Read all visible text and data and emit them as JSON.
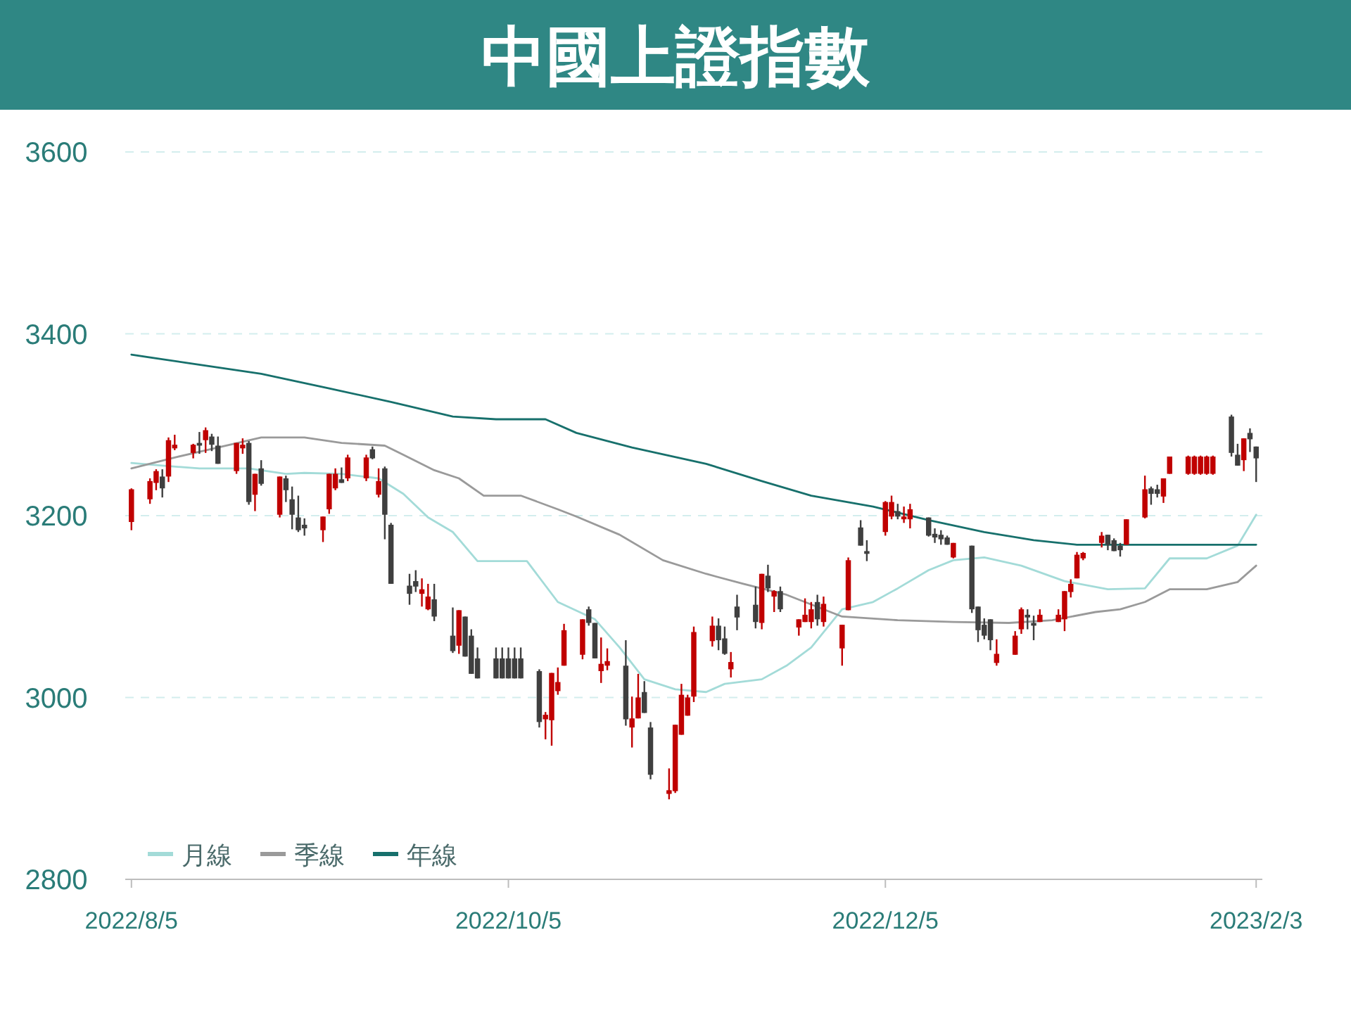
{
  "chart_data": {
    "type": "candlestick",
    "title": "中國上證指數",
    "x": [
      "2022-08-05",
      "2022-08-08",
      "2022-08-09",
      "2022-08-10",
      "2022-08-11",
      "2022-08-12",
      "2022-08-15",
      "2022-08-16",
      "2022-08-17",
      "2022-08-18",
      "2022-08-19",
      "2022-08-22",
      "2022-08-23",
      "2022-08-24",
      "2022-08-25",
      "2022-08-26",
      "2022-08-29",
      "2022-08-30",
      "2022-08-31",
      "2022-09-01",
      "2022-09-02",
      "2022-09-05",
      "2022-09-06",
      "2022-09-07",
      "2022-09-08",
      "2022-09-09",
      "2022-09-12",
      "2022-09-13",
      "2022-09-14",
      "2022-09-15",
      "2022-09-16",
      "2022-09-19",
      "2022-09-20",
      "2022-09-21",
      "2022-09-22",
      "2022-09-23",
      "2022-09-26",
      "2022-09-27",
      "2022-09-28",
      "2022-09-29",
      "2022-09-30",
      "2022-10-03",
      "2022-10-04",
      "2022-10-05",
      "2022-10-06",
      "2022-10-07",
      "2022-10-10",
      "2022-10-11",
      "2022-10-12",
      "2022-10-13",
      "2022-10-14",
      "2022-10-17",
      "2022-10-18",
      "2022-10-19",
      "2022-10-20",
      "2022-10-21",
      "2022-10-24",
      "2022-10-25",
      "2022-10-26",
      "2022-10-27",
      "2022-10-28",
      "2022-10-31",
      "2022-11-01",
      "2022-11-02",
      "2022-11-03",
      "2022-11-04",
      "2022-11-07",
      "2022-11-08",
      "2022-11-09",
      "2022-11-10",
      "2022-11-11",
      "2022-11-14",
      "2022-11-15",
      "2022-11-16",
      "2022-11-17",
      "2022-11-18",
      "2022-11-21",
      "2022-11-22",
      "2022-11-23",
      "2022-11-24",
      "2022-11-25",
      "2022-11-28",
      "2022-11-29",
      "2022-12-01",
      "2022-12-02",
      "2022-12-05",
      "2022-12-06",
      "2022-12-07",
      "2022-12-08",
      "2022-12-09",
      "2022-12-12",
      "2022-12-13",
      "2022-12-14",
      "2022-12-15",
      "2022-12-16",
      "2022-12-19",
      "2022-12-20",
      "2022-12-21",
      "2022-12-22",
      "2022-12-23",
      "2022-12-26",
      "2022-12-27",
      "2022-12-28",
      "2022-12-29",
      "2022-12-30",
      "2023-01-02",
      "2023-01-03",
      "2023-01-04",
      "2023-01-05",
      "2023-01-06",
      "2023-01-09",
      "2023-01-10",
      "2023-01-11",
      "2023-01-12",
      "2023-01-13",
      "2023-01-16",
      "2023-01-17",
      "2023-01-18",
      "2023-01-19",
      "2023-01-20",
      "2023-01-23",
      "2023-01-24",
      "2023-01-25",
      "2023-01-26",
      "2023-01-27",
      "2023-01-30",
      "2023-01-31",
      "2023-02-01",
      "2023-02-02",
      "2023-02-03"
    ],
    "ohlc": [
      [
        3193,
        3230,
        3184,
        3229
      ],
      [
        3218,
        3241,
        3213,
        3238
      ],
      [
        3236,
        3251,
        3228,
        3249
      ],
      [
        3243,
        3251,
        3220,
        3230
      ],
      [
        3243,
        3286,
        3237,
        3283
      ],
      [
        3274,
        3289,
        3272,
        3278
      ],
      [
        3269,
        3279,
        3263,
        3278
      ],
      [
        3280,
        3292,
        3268,
        3277
      ],
      [
        3283,
        3297,
        3269,
        3294
      ],
      [
        3287,
        3290,
        3271,
        3278
      ],
      [
        3277,
        3287,
        3257,
        3257
      ],
      [
        3249,
        3280,
        3246,
        3280
      ],
      [
        3274,
        3285,
        3268,
        3278
      ],
      [
        3280,
        3282,
        3212,
        3215
      ],
      [
        3223,
        3246,
        3205,
        3246
      ],
      [
        3252,
        3261,
        3233,
        3235
      ],
      [
        3201,
        3243,
        3198,
        3243
      ],
      [
        3241,
        3244,
        3215,
        3228
      ],
      [
        3218,
        3232,
        3185,
        3201
      ],
      [
        3198,
        3222,
        3182,
        3184
      ],
      [
        3190,
        3197,
        3178,
        3186
      ],
      [
        3184,
        3199,
        3171,
        3199
      ],
      [
        3207,
        3246,
        3202,
        3246
      ],
      [
        3230,
        3252,
        3228,
        3246
      ],
      [
        3240,
        3253,
        3236,
        3236
      ],
      [
        3241,
        3267,
        3238,
        3264
      ],
      [
        3241,
        3267,
        3238,
        3264
      ],
      [
        3273,
        3276,
        3262,
        3263
      ],
      [
        3223,
        3252,
        3220,
        3238
      ],
      [
        3252,
        3254,
        3174,
        3201
      ],
      [
        3190,
        3192,
        3125,
        3125
      ],
      [
        3123,
        3136,
        3102,
        3114
      ],
      [
        3128,
        3140,
        3116,
        3122
      ],
      [
        3114,
        3131,
        3100,
        3119
      ],
      [
        3097,
        3125,
        3096,
        3111
      ],
      [
        3108,
        3125,
        3084,
        3089
      ],
      [
        3068,
        3099,
        3049,
        3051
      ],
      [
        3057,
        3096,
        3048,
        3096
      ],
      [
        3089,
        3089,
        3045,
        3045
      ],
      [
        3068,
        3075,
        3026,
        3026
      ],
      [
        3043,
        3055,
        3021,
        3021
      ],
      [
        3043,
        3055,
        3021,
        3021
      ],
      [
        3043,
        3055,
        3021,
        3021
      ],
      [
        3043,
        3055,
        3021,
        3021
      ],
      [
        3043,
        3055,
        3021,
        3021
      ],
      [
        3043,
        3055,
        3021,
        3021
      ],
      [
        3029,
        3031,
        2967,
        2973
      ],
      [
        2976,
        2984,
        2954,
        2981
      ],
      [
        2975,
        3027,
        2947,
        3027
      ],
      [
        3007,
        3033,
        3003,
        3017
      ],
      [
        3035,
        3081,
        3035,
        3074
      ],
      [
        3047,
        3086,
        3042,
        3086
      ],
      [
        3097,
        3100,
        3079,
        3082
      ],
      [
        3082,
        3082,
        3043,
        3043
      ],
      [
        3029,
        3066,
        3016,
        3037
      ],
      [
        3035,
        3054,
        3030,
        3040
      ],
      [
        3035,
        3063,
        2969,
        2976
      ],
      [
        2967,
        3001,
        2945,
        2977
      ],
      [
        2977,
        3026,
        2977,
        3000
      ],
      [
        3006,
        3018,
        2983,
        2983
      ],
      [
        2967,
        2973,
        2910,
        2915
      ],
      [
        2894,
        2922,
        2888,
        2898
      ],
      [
        2897,
        2970,
        2895,
        2970
      ],
      [
        2959,
        3015,
        2959,
        3003
      ],
      [
        2980,
        3003,
        2980,
        3000
      ],
      [
        3001,
        3078,
        2995,
        3072
      ],
      [
        3062,
        3089,
        3056,
        3079
      ],
      [
        3079,
        3087,
        3052,
        3063
      ],
      [
        3065,
        3078,
        3047,
        3048
      ],
      [
        3031,
        3050,
        3022,
        3039
      ],
      [
        3100,
        3113,
        3074,
        3088
      ],
      [
        3102,
        3122,
        3076,
        3083
      ],
      [
        3082,
        3136,
        3075,
        3136
      ],
      [
        3134,
        3146,
        3116,
        3120
      ],
      [
        3111,
        3118,
        3094,
        3117
      ],
      [
        3117,
        3122,
        3094,
        3097
      ],
      [
        3077,
        3086,
        3068,
        3086
      ],
      [
        3083,
        3109,
        3083,
        3091
      ],
      [
        3083,
        3105,
        3076,
        3097
      ],
      [
        3105,
        3113,
        3079,
        3086
      ],
      [
        3083,
        3111,
        3078,
        3103
      ],
      [
        3054,
        3080,
        3035,
        3080
      ],
      [
        3096,
        3154,
        3096,
        3151
      ],
      [
        3187,
        3195,
        3167,
        3167
      ],
      [
        3161,
        3173,
        3150,
        3158
      ],
      [
        3182,
        3216,
        3178,
        3215
      ],
      [
        3199,
        3222,
        3196,
        3215
      ],
      [
        3205,
        3213,
        3196,
        3199
      ],
      [
        3196,
        3210,
        3192,
        3199
      ],
      [
        3196,
        3213,
        3186,
        3207
      ],
      [
        3198,
        3198,
        3177,
        3178
      ],
      [
        3180,
        3186,
        3170,
        3176
      ],
      [
        3179,
        3184,
        3168,
        3174
      ],
      [
        3176,
        3178,
        3168,
        3168
      ],
      [
        3154,
        3170,
        3153,
        3170
      ],
      [
        3167,
        3167,
        3093,
        3097
      ],
      [
        3100,
        3100,
        3061,
        3074
      ],
      [
        3080,
        3087,
        3064,
        3068
      ],
      [
        3086,
        3086,
        3052,
        3063
      ],
      [
        3038,
        3064,
        3035,
        3048
      ],
      [
        3047,
        3073,
        3047,
        3068
      ],
      [
        3075,
        3099,
        3070,
        3097
      ],
      [
        3091,
        3097,
        3075,
        3088
      ],
      [
        3082,
        3090,
        3063,
        3079
      ],
      [
        3083,
        3097,
        3083,
        3091
      ],
      [
        3083,
        3097,
        3083,
        3091
      ],
      [
        3086,
        3117,
        3073,
        3117
      ],
      [
        3116,
        3130,
        3110,
        3125
      ],
      [
        3131,
        3160,
        3131,
        3157
      ],
      [
        3153,
        3160,
        3151,
        3159
      ],
      [
        3170,
        3182,
        3165,
        3178
      ],
      [
        3179,
        3179,
        3162,
        3168
      ],
      [
        3173,
        3175,
        3161,
        3161
      ],
      [
        3167,
        3170,
        3155,
        3162
      ],
      [
        3168,
        3196,
        3168,
        3196
      ],
      [
        3198,
        3244,
        3197,
        3229
      ],
      [
        3230,
        3232,
        3212,
        3224
      ],
      [
        3229,
        3234,
        3220,
        3224
      ],
      [
        3221,
        3241,
        3214,
        3241
      ],
      [
        3246,
        3265,
        3246,
        3265
      ],
      [
        3246,
        3266,
        3245,
        3265
      ],
      [
        3246,
        3266,
        3245,
        3265
      ],
      [
        3246,
        3266,
        3245,
        3265
      ],
      [
        3246,
        3266,
        3245,
        3265
      ],
      [
        3246,
        3266,
        3245,
        3265
      ],
      [
        3309,
        3311,
        3265,
        3269
      ],
      [
        3267,
        3279,
        3255,
        3255
      ],
      [
        3261,
        3285,
        3249,
        3285
      ],
      [
        3291,
        3296,
        3270,
        3284
      ],
      [
        3276,
        3276,
        3237,
        3263
      ]
    ],
    "colors": [
      "#c00000",
      "#c00000",
      "#c00000",
      "#3f3f3f",
      "#c00000",
      "#c00000",
      "#c00000",
      "#3f3f3f",
      "#c00000",
      "#3f3f3f",
      "#3f3f3f",
      "#c00000",
      "#c00000",
      "#3f3f3f",
      "#c00000",
      "#3f3f3f",
      "#c00000",
      "#3f3f3f",
      "#3f3f3f",
      "#3f3f3f",
      "#3f3f3f",
      "#c00000",
      "#c00000",
      "#c00000",
      "#3f3f3f",
      "#c00000",
      "#c00000",
      "#3f3f3f",
      "#c00000",
      "#3f3f3f",
      "#3f3f3f",
      "#3f3f3f",
      "#3f3f3f",
      "#c00000",
      "#c00000",
      "#3f3f3f",
      "#3f3f3f",
      "#c00000",
      "#3f3f3f",
      "#3f3f3f",
      "#3f3f3f",
      "#3f3f3f",
      "#3f3f3f",
      "#3f3f3f",
      "#3f3f3f",
      "#3f3f3f",
      "#3f3f3f",
      "#c00000",
      "#c00000",
      "#c00000",
      "#c00000",
      "#c00000",
      "#3f3f3f",
      "#3f3f3f",
      "#c00000",
      "#c00000",
      "#3f3f3f",
      "#c00000",
      "#c00000",
      "#3f3f3f",
      "#3f3f3f",
      "#c00000",
      "#c00000",
      "#c00000",
      "#c00000",
      "#c00000",
      "#c00000",
      "#3f3f3f",
      "#3f3f3f",
      "#c00000",
      "#3f3f3f",
      "#3f3f3f",
      "#c00000",
      "#3f3f3f",
      "#c00000",
      "#3f3f3f",
      "#c00000",
      "#c00000",
      "#c00000",
      "#3f3f3f",
      "#c00000",
      "#c00000",
      "#c00000",
      "#3f3f3f",
      "#3f3f3f",
      "#c00000",
      "#c00000",
      "#3f3f3f",
      "#c00000",
      "#c00000",
      "#3f3f3f",
      "#3f3f3f",
      "#3f3f3f",
      "#3f3f3f",
      "#c00000",
      "#3f3f3f",
      "#3f3f3f",
      "#3f3f3f",
      "#3f3f3f",
      "#c00000",
      "#c00000",
      "#c00000",
      "#3f3f3f",
      "#3f3f3f",
      "#c00000",
      "#c00000",
      "#c00000",
      "#c00000",
      "#c00000",
      "#c00000",
      "#c00000",
      "#3f3f3f",
      "#3f3f3f",
      "#3f3f3f",
      "#c00000",
      "#c00000",
      "#3f3f3f",
      "#3f3f3f",
      "#c00000",
      "#c00000",
      "#c00000",
      "#c00000",
      "#c00000",
      "#c00000",
      "#c00000",
      "#3f3f3f",
      "#3f3f3f",
      "#c00000",
      "#3f3f3f",
      "#3f3f3f"
    ],
    "series": [
      {
        "name": "月線",
        "type": "line",
        "color": "#a3dbd8",
        "x": [
          "2022-08-05",
          "2022-08-10",
          "2022-08-16",
          "2022-08-24",
          "2022-08-30",
          "2022-09-02",
          "2022-09-08",
          "2022-09-14",
          "2022-09-18",
          "2022-09-22",
          "2022-09-26",
          "2022-09-30",
          "2022-10-08",
          "2022-10-13",
          "2022-10-19",
          "2022-10-23",
          "2022-10-27",
          "2022-11-01",
          "2022-11-06",
          "2022-11-09",
          "2022-11-15",
          "2022-11-19",
          "2022-11-23",
          "2022-11-28",
          "2022-12-03",
          "2022-12-07",
          "2022-12-12",
          "2022-12-16",
          "2022-12-21",
          "2022-12-27",
          "2023-01-03",
          "2023-01-10",
          "2023-01-16",
          "2023-01-20",
          "2023-01-26",
          "2023-01-31",
          "2023-02-03"
        ],
        "values": [
          3258,
          3255,
          3252,
          3252,
          3246,
          3247,
          3246,
          3241,
          3224,
          3198,
          3182,
          3150,
          3150,
          3105,
          3086,
          3055,
          3020,
          3009,
          3006,
          3015,
          3020,
          3035,
          3055,
          3097,
          3105,
          3120,
          3140,
          3151,
          3154,
          3145,
          3128,
          3119,
          3120,
          3153,
          3153,
          3167,
          3201
        ]
      },
      {
        "name": "季線",
        "type": "line",
        "color": "#9a9a9a",
        "x": [
          "2022-08-05",
          "2022-08-12",
          "2022-08-19",
          "2022-08-26",
          "2022-09-02",
          "2022-09-08",
          "2022-09-15",
          "2022-09-18",
          "2022-09-23",
          "2022-09-27",
          "2022-10-01",
          "2022-10-07",
          "2022-10-13",
          "2022-10-16",
          "2022-10-23",
          "2022-10-30",
          "2022-11-06",
          "2022-11-12",
          "2022-11-19",
          "2022-11-28",
          "2022-12-07",
          "2022-12-16",
          "2022-12-25",
          "2023-01-01",
          "2023-01-08",
          "2023-01-12",
          "2023-01-16",
          "2023-01-20",
          "2023-01-26",
          "2023-01-31",
          "2023-02-03"
        ],
        "values": [
          3252,
          3264,
          3275,
          3286,
          3286,
          3280,
          3277,
          3267,
          3250,
          3241,
          3222,
          3222,
          3207,
          3199,
          3179,
          3151,
          3136,
          3125,
          3113,
          3089,
          3085,
          3083,
          3082,
          3085,
          3094,
          3097,
          3105,
          3119,
          3119,
          3127,
          3145
        ]
      },
      {
        "name": "年線",
        "type": "line",
        "color": "#17706c",
        "x": [
          "2022-08-05",
          "2022-08-14",
          "2022-08-26",
          "2022-09-06",
          "2022-09-16",
          "2022-09-26",
          "2022-10-03",
          "2022-10-11",
          "2022-10-16",
          "2022-10-25",
          "2022-11-06",
          "2022-11-15",
          "2022-11-23",
          "2022-12-03",
          "2022-12-12",
          "2022-12-21",
          "2022-12-29",
          "2023-01-05",
          "2023-01-19",
          "2023-02-03"
        ],
        "values": [
          3377,
          3368,
          3356,
          3340,
          3325,
          3309,
          3306,
          3306,
          3291,
          3275,
          3257,
          3238,
          3222,
          3210,
          3195,
          3182,
          3173,
          3168,
          3168,
          3168
        ]
      }
    ],
    "ylim": [
      2800,
      3600
    ],
    "yticks": [
      2800,
      3000,
      3200,
      3400,
      3600
    ],
    "xlim": [
      "2022-08-04",
      "2023-02-04"
    ],
    "xticks": [
      {
        "value": "2022-08-05",
        "label": "2022/8/5"
      },
      {
        "value": "2022-10-05",
        "label": "2022/10/5"
      },
      {
        "value": "2022-12-05",
        "label": "2022/12/5"
      },
      {
        "value": "2023-02-03",
        "label": "2023/2/3"
      }
    ],
    "grid": "y",
    "legend": "bottom left"
  }
}
